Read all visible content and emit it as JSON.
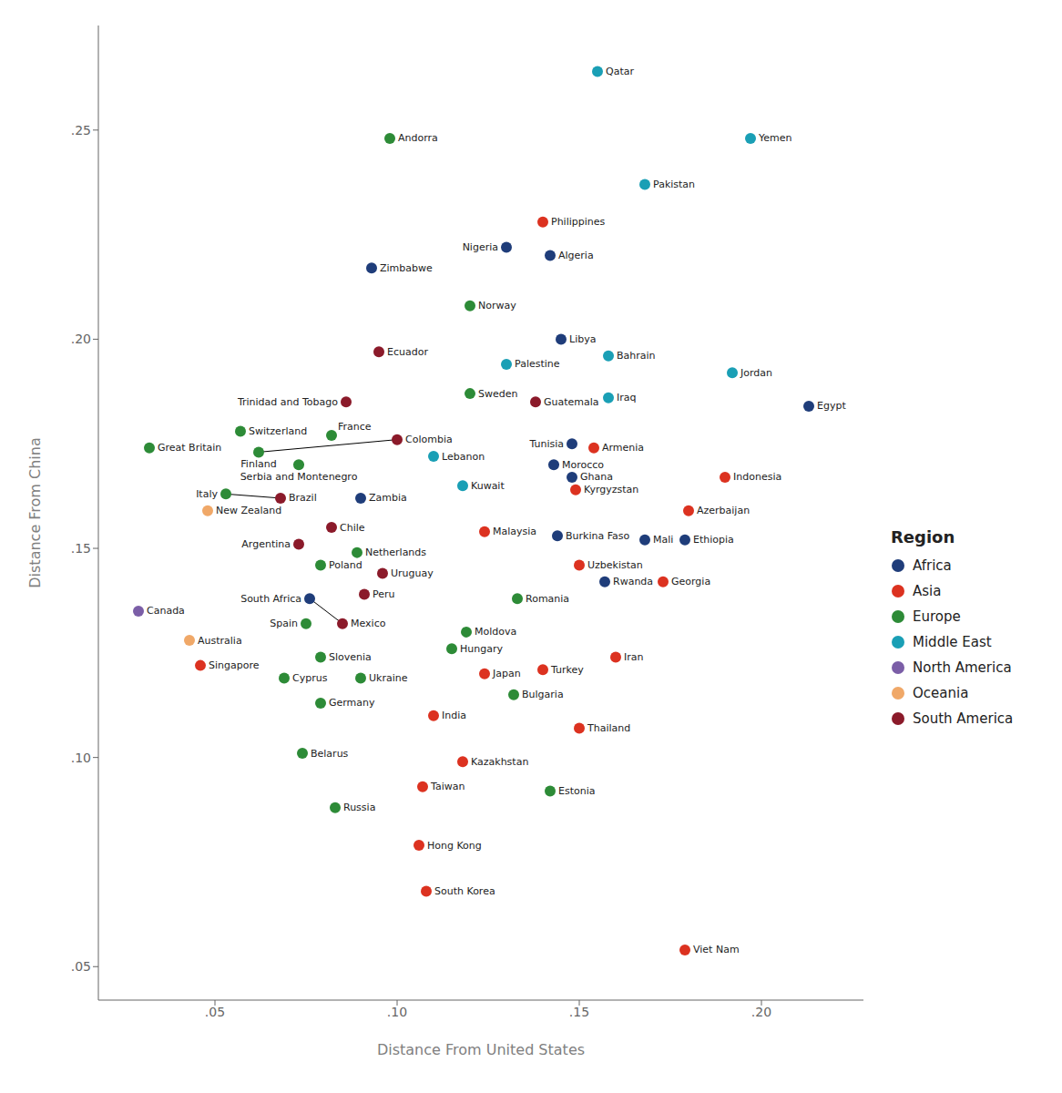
{
  "chart_data": {
    "type": "scatter",
    "xlabel": "Distance From United States",
    "ylabel": "Distance From China",
    "legend_title": "Region",
    "legend": "right",
    "grid": false,
    "xlim": [
      0.018,
      0.228
    ],
    "ylim": [
      0.042,
      0.275
    ],
    "xticks": [
      {
        "value": 0.05,
        "label": ".05"
      },
      {
        "value": 0.1,
        "label": ".10"
      },
      {
        "value": 0.15,
        "label": ".15"
      },
      {
        "value": 0.2,
        "label": ".20"
      }
    ],
    "yticks": [
      {
        "value": 0.05,
        "label": ".05"
      },
      {
        "value": 0.1,
        "label": ".10"
      },
      {
        "value": 0.15,
        "label": ".15"
      },
      {
        "value": 0.2,
        "label": ".20"
      },
      {
        "value": 0.25,
        "label": ".25"
      }
    ],
    "series": [
      {
        "name": "Africa",
        "color": "#1f3d7a",
        "points": [
          {
            "name": "Nigeria",
            "x": 0.13,
            "y": 0.222
          },
          {
            "name": "Algeria",
            "x": 0.142,
            "y": 0.22
          },
          {
            "name": "Zimbabwe",
            "x": 0.093,
            "y": 0.217
          },
          {
            "name": "Libya",
            "x": 0.145,
            "y": 0.2
          },
          {
            "name": "Egypt",
            "x": 0.213,
            "y": 0.184
          },
          {
            "name": "Tunisia",
            "x": 0.148,
            "y": 0.175
          },
          {
            "name": "Morocco",
            "x": 0.143,
            "y": 0.17
          },
          {
            "name": "Ghana",
            "x": 0.148,
            "y": 0.167
          },
          {
            "name": "Zambia",
            "x": 0.09,
            "y": 0.162
          },
          {
            "name": "Burkina Faso",
            "x": 0.144,
            "y": 0.153
          },
          {
            "name": "Mali",
            "x": 0.168,
            "y": 0.152
          },
          {
            "name": "Ethiopia",
            "x": 0.179,
            "y": 0.152
          },
          {
            "name": "Rwanda",
            "x": 0.157,
            "y": 0.142
          },
          {
            "name": "South Africa",
            "x": 0.076,
            "y": 0.138
          }
        ]
      },
      {
        "name": "Asia",
        "color": "#dc3220",
        "points": [
          {
            "name": "Philippines",
            "x": 0.14,
            "y": 0.228
          },
          {
            "name": "Armenia",
            "x": 0.154,
            "y": 0.174
          },
          {
            "name": "Indonesia",
            "x": 0.19,
            "y": 0.167
          },
          {
            "name": "Kyrgyzstan",
            "x": 0.149,
            "y": 0.164
          },
          {
            "name": "Azerbaijan",
            "x": 0.18,
            "y": 0.159
          },
          {
            "name": "Malaysia",
            "x": 0.124,
            "y": 0.154
          },
          {
            "name": "Uzbekistan",
            "x": 0.15,
            "y": 0.146
          },
          {
            "name": "Georgia",
            "x": 0.173,
            "y": 0.142
          },
          {
            "name": "Singapore",
            "x": 0.046,
            "y": 0.122
          },
          {
            "name": "Japan",
            "x": 0.124,
            "y": 0.12
          },
          {
            "name": "Turkey",
            "x": 0.14,
            "y": 0.121
          },
          {
            "name": "Iran",
            "x": 0.16,
            "y": 0.124
          },
          {
            "name": "India",
            "x": 0.11,
            "y": 0.11
          },
          {
            "name": "Thailand",
            "x": 0.15,
            "y": 0.107
          },
          {
            "name": "Kazakhstan",
            "x": 0.118,
            "y": 0.099
          },
          {
            "name": "Taiwan",
            "x": 0.107,
            "y": 0.093
          },
          {
            "name": "Hong Kong",
            "x": 0.106,
            "y": 0.079
          },
          {
            "name": "South Korea",
            "x": 0.108,
            "y": 0.068
          },
          {
            "name": "Viet Nam",
            "x": 0.179,
            "y": 0.054
          }
        ]
      },
      {
        "name": "Europe",
        "color": "#2d8b37",
        "points": [
          {
            "name": "Andorra",
            "x": 0.098,
            "y": 0.248
          },
          {
            "name": "Norway",
            "x": 0.12,
            "y": 0.208
          },
          {
            "name": "Sweden",
            "x": 0.12,
            "y": 0.187
          },
          {
            "name": "Switzerland",
            "x": 0.057,
            "y": 0.178
          },
          {
            "name": "France",
            "x": 0.082,
            "y": 0.177
          },
          {
            "name": "Great Britain",
            "x": 0.032,
            "y": 0.174
          },
          {
            "name": "Finland",
            "x": 0.062,
            "y": 0.173
          },
          {
            "name": "Serbia and Montenegro",
            "x": 0.073,
            "y": 0.17
          },
          {
            "name": "Italy",
            "x": 0.053,
            "y": 0.163
          },
          {
            "name": "Netherlands",
            "x": 0.089,
            "y": 0.149
          },
          {
            "name": "Poland",
            "x": 0.079,
            "y": 0.146
          },
          {
            "name": "Romania",
            "x": 0.133,
            "y": 0.138
          },
          {
            "name": "Spain",
            "x": 0.075,
            "y": 0.132
          },
          {
            "name": "Moldova",
            "x": 0.119,
            "y": 0.13
          },
          {
            "name": "Hungary",
            "x": 0.115,
            "y": 0.126
          },
          {
            "name": "Slovenia",
            "x": 0.079,
            "y": 0.124
          },
          {
            "name": "Cyprus",
            "x": 0.069,
            "y": 0.119
          },
          {
            "name": "Ukraine",
            "x": 0.09,
            "y": 0.119
          },
          {
            "name": "Bulgaria",
            "x": 0.132,
            "y": 0.115
          },
          {
            "name": "Germany",
            "x": 0.079,
            "y": 0.113
          },
          {
            "name": "Belarus",
            "x": 0.074,
            "y": 0.101
          },
          {
            "name": "Estonia",
            "x": 0.142,
            "y": 0.092
          },
          {
            "name": "Russia",
            "x": 0.083,
            "y": 0.088
          }
        ]
      },
      {
        "name": "Middle East",
        "color": "#1a9fb5",
        "points": [
          {
            "name": "Qatar",
            "x": 0.155,
            "y": 0.264
          },
          {
            "name": "Yemen",
            "x": 0.197,
            "y": 0.248
          },
          {
            "name": "Pakistan",
            "x": 0.168,
            "y": 0.237
          },
          {
            "name": "Palestine",
            "x": 0.13,
            "y": 0.194
          },
          {
            "name": "Bahrain",
            "x": 0.158,
            "y": 0.196
          },
          {
            "name": "Jordan",
            "x": 0.192,
            "y": 0.192
          },
          {
            "name": "Iraq",
            "x": 0.158,
            "y": 0.186
          },
          {
            "name": "Lebanon",
            "x": 0.11,
            "y": 0.172
          },
          {
            "name": "Kuwait",
            "x": 0.118,
            "y": 0.165
          }
        ]
      },
      {
        "name": "North America",
        "color": "#7b5ea7",
        "points": [
          {
            "name": "Canada",
            "x": 0.029,
            "y": 0.135
          }
        ]
      },
      {
        "name": "Oceania",
        "color": "#f0a868",
        "points": [
          {
            "name": "New Zealand",
            "x": 0.048,
            "y": 0.159
          },
          {
            "name": "Australia",
            "x": 0.043,
            "y": 0.128
          }
        ]
      },
      {
        "name": "South America",
        "color": "#8b1a2a",
        "points": [
          {
            "name": "Ecuador",
            "x": 0.095,
            "y": 0.197
          },
          {
            "name": "Guatemala",
            "x": 0.138,
            "y": 0.185
          },
          {
            "name": "Trinidad and Tobago",
            "x": 0.086,
            "y": 0.185
          },
          {
            "name": "Colombia",
            "x": 0.1,
            "y": 0.176
          },
          {
            "name": "Brazil",
            "x": 0.068,
            "y": 0.162
          },
          {
            "name": "Chile",
            "x": 0.082,
            "y": 0.155
          },
          {
            "name": "Argentina",
            "x": 0.073,
            "y": 0.151
          },
          {
            "name": "Uruguay",
            "x": 0.096,
            "y": 0.144
          },
          {
            "name": "Peru",
            "x": 0.091,
            "y": 0.139
          },
          {
            "name": "Mexico",
            "x": 0.085,
            "y": 0.132
          }
        ]
      }
    ],
    "leader_lines": [
      {
        "x": [
          0.053,
          0.068
        ],
        "y": [
          0.163,
          0.162
        ]
      },
      {
        "x": [
          0.062,
          0.1
        ],
        "y": [
          0.173,
          0.176
        ]
      },
      {
        "x": [
          0.076,
          0.085
        ],
        "y": [
          0.138,
          0.132
        ]
      }
    ]
  }
}
